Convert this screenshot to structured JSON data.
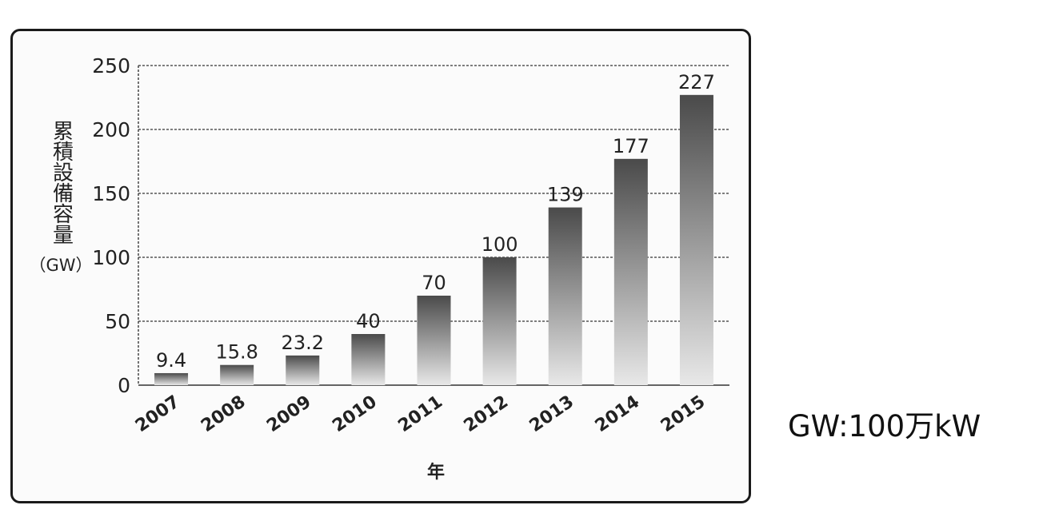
{
  "chart_data": {
    "type": "bar",
    "categories": [
      "2007",
      "2008",
      "2009",
      "2010",
      "2011",
      "2012",
      "2013",
      "2014",
      "2015"
    ],
    "values": [
      9.4,
      15.8,
      23.2,
      40,
      70,
      100,
      139,
      177,
      227
    ],
    "value_labels": [
      "9.4",
      "15.8",
      "23.2",
      "40",
      "70",
      "100",
      "139",
      "177",
      "227"
    ],
    "xlabel": "年",
    "ylabel": "累積設備容量",
    "ylabel_unit": "（GW）",
    "ylim": [
      0,
      250
    ],
    "yticks": [
      0,
      50,
      100,
      150,
      200,
      250
    ],
    "grid": true,
    "bar_gradient": [
      "#4a4a4a",
      "#e8e8e8"
    ]
  },
  "note": "GW:100万kW"
}
